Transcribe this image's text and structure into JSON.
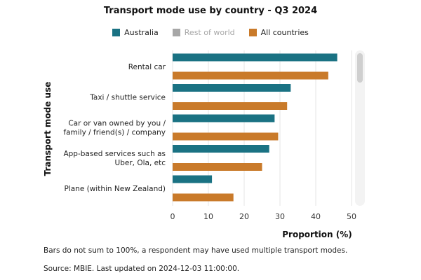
{
  "chart_data": {
    "type": "bar",
    "orientation": "horizontal",
    "title": "Transport mode use by country - Q3 2024",
    "xlabel": "Proportion (%)",
    "ylabel": "Transport mode use",
    "xlim": [
      0,
      50
    ],
    "xticks": [
      "0",
      "10",
      "20",
      "30",
      "40",
      "50"
    ],
    "grid": true,
    "legend_position": "top",
    "categories": [
      [
        "Rental car"
      ],
      [
        "Taxi / shuttle service"
      ],
      [
        "Car or van owned by you /",
        "family / friend(s) / company"
      ],
      [
        "App-based services such as",
        "Uber, Ola, etc"
      ],
      [
        "Plane (within New Zealand)"
      ]
    ],
    "series": [
      {
        "name": "Australia",
        "color": "#1a7283",
        "values": [
          46,
          33,
          28.5,
          27,
          11
        ]
      },
      {
        "name": "Rest of world",
        "color": "#a7a7a7",
        "values": [
          null,
          null,
          null,
          null,
          null
        ],
        "inactive": true
      },
      {
        "name": "All countries",
        "color": "#c97a2a",
        "values": [
          43.5,
          32,
          29.5,
          25,
          17
        ]
      }
    ]
  },
  "notes": {
    "line1": "Bars do not sum to 100%, a respondent may have used multiple transport modes.",
    "line2": "Source: MBIE. Last updated on 2024-12-03 11:00:00."
  }
}
